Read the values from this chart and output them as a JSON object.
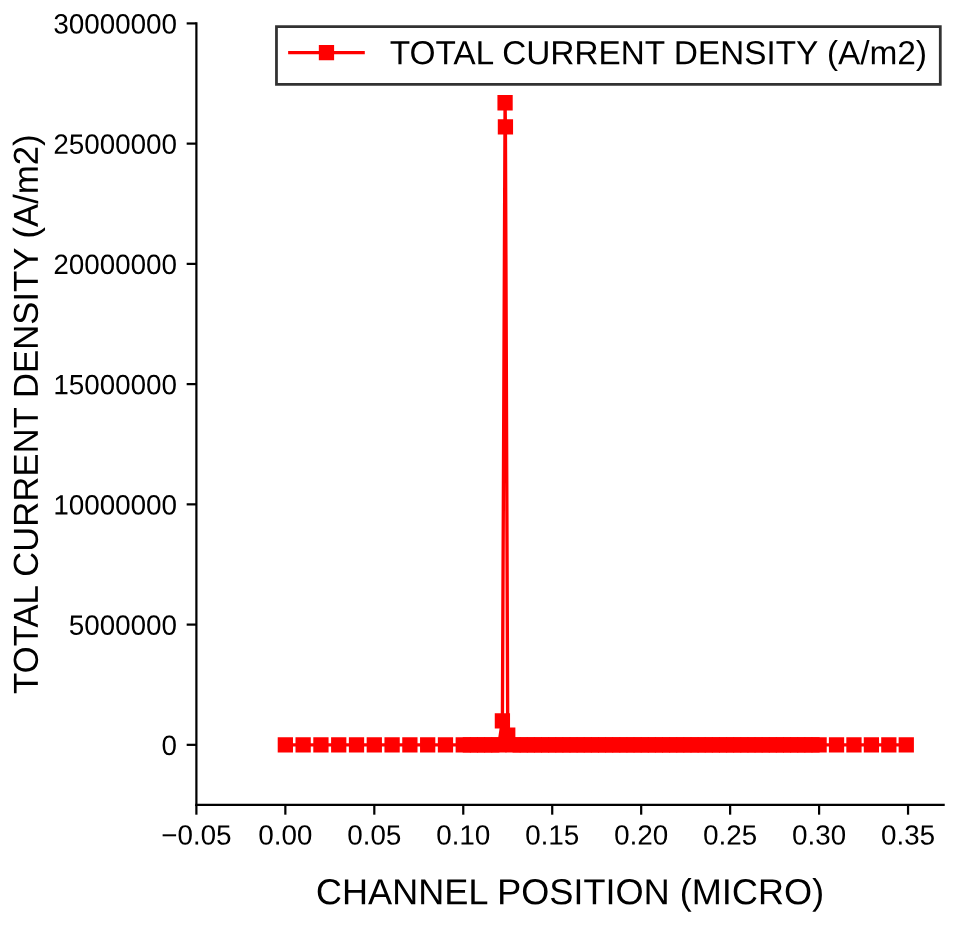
{
  "chart_data": {
    "type": "line",
    "xlabel": "CHANNEL POSITION (MICRO)",
    "ylabel": "TOTAL CURRENT DENSITY (A/m2)",
    "x": [
      0,
      0.01,
      0.02,
      0.03,
      0.04,
      0.05,
      0.06,
      0.07,
      0.08,
      0.09,
      0.1,
      0.104,
      0.108,
      0.112,
      0.116,
      0.12,
      0.122,
      0.1235,
      0.1237,
      0.125,
      0.128,
      0.132,
      0.136,
      0.14,
      0.144,
      0.148,
      0.152,
      0.156,
      0.16,
      0.164,
      0.168,
      0.172,
      0.176,
      0.18,
      0.184,
      0.188,
      0.192,
      0.196,
      0.2,
      0.204,
      0.208,
      0.212,
      0.216,
      0.22,
      0.224,
      0.228,
      0.232,
      0.236,
      0.24,
      0.244,
      0.248,
      0.252,
      0.256,
      0.26,
      0.264,
      0.268,
      0.272,
      0.276,
      0.28,
      0.284,
      0.288,
      0.292,
      0.296,
      0.3,
      0.3098,
      0.3196,
      0.3294,
      0.3392,
      0.349
    ],
    "series": [
      {
        "name": "TOTAL CURRENT DENSITY (A/m2)",
        "color": "#ff0000",
        "values": [
          0,
          0,
          0,
          0,
          0,
          0,
          0,
          0,
          0,
          0,
          0,
          0,
          0,
          0,
          0,
          0,
          1000000,
          26700000,
          25700000,
          400000,
          0,
          0,
          0,
          0,
          0,
          0,
          0,
          0,
          0,
          0,
          0,
          0,
          0,
          0,
          0,
          0,
          0,
          0,
          0,
          0,
          0,
          0,
          0,
          0,
          0,
          0,
          0,
          0,
          0,
          0,
          0,
          0,
          0,
          0,
          0,
          0,
          0,
          0,
          0,
          0,
          0,
          0,
          0,
          0,
          0,
          0,
          0,
          0,
          0
        ]
      }
    ],
    "xlim": [
      -0.05,
      0.37
    ],
    "ylim": [
      -2500000,
      30000000
    ],
    "xticks": [
      {
        "value": -0.05,
        "label": "−0.05"
      },
      {
        "value": 0,
        "label": "0.00"
      },
      {
        "value": 0.05,
        "label": "0.05"
      },
      {
        "value": 0.1,
        "label": "0.10"
      },
      {
        "value": 0.15,
        "label": "0.15"
      },
      {
        "value": 0.2,
        "label": "0.20"
      },
      {
        "value": 0.25,
        "label": "0.25"
      },
      {
        "value": 0.3,
        "label": "0.30"
      },
      {
        "value": 0.35,
        "label": "0.35"
      }
    ],
    "yticks": [
      0,
      5000000,
      10000000,
      15000000,
      20000000,
      25000000,
      30000000
    ],
    "marker": "square",
    "line_style": "solid",
    "legend": "top right",
    "grid": false
  }
}
